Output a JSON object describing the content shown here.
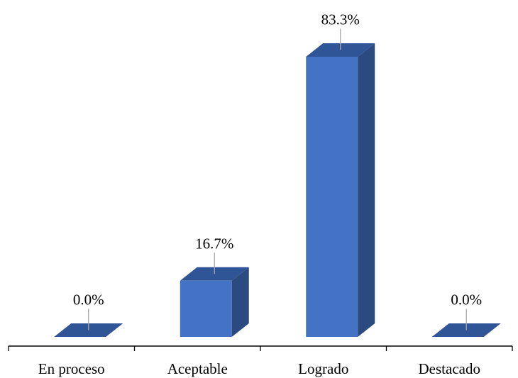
{
  "chart_data": {
    "type": "bar",
    "categories": [
      "En proceso",
      "Aceptable",
      "Logrado",
      "Destacado"
    ],
    "values": [
      0.0,
      16.7,
      83.3,
      0.0
    ],
    "value_labels": [
      "0.0%",
      "16.7%",
      "83.3%",
      "0.0%"
    ],
    "title": "",
    "xlabel": "",
    "ylabel": "",
    "ylim": [
      0,
      100
    ],
    "grid": false,
    "legend": "none",
    "style": "3d-column",
    "colors": {
      "front": "#4472C4",
      "top": "#2F5597",
      "side": "#2B4A80",
      "axis": "#000000",
      "leader": "#A6A6A6"
    }
  }
}
